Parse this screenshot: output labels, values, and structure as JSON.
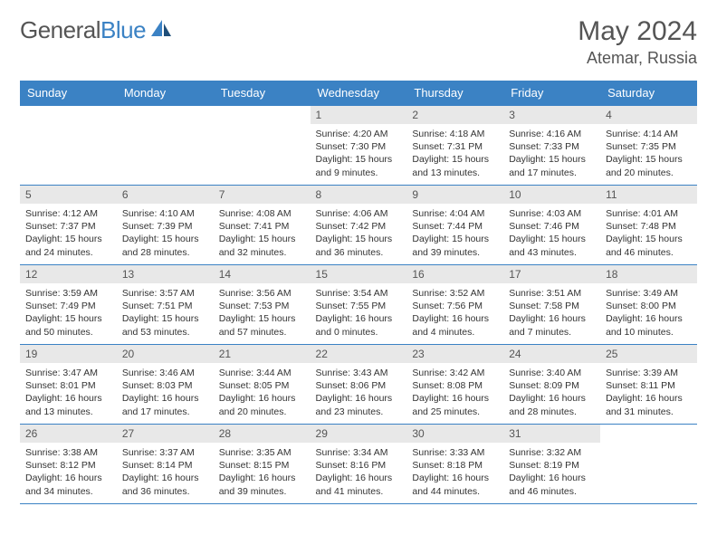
{
  "brand": {
    "part1": "General",
    "part2": "Blue"
  },
  "title": "May 2024",
  "location": "Atemar, Russia",
  "colors": {
    "header_bg": "#3b82c4",
    "header_text": "#ffffff",
    "daynum_bg": "#e8e8e8",
    "border": "#3b82c4",
    "body_text": "#333333",
    "title_text": "#555555"
  },
  "weekdays": [
    "Sunday",
    "Monday",
    "Tuesday",
    "Wednesday",
    "Thursday",
    "Friday",
    "Saturday"
  ],
  "weeks": [
    [
      null,
      null,
      null,
      {
        "n": "1",
        "sr": "4:20 AM",
        "ss": "7:30 PM",
        "dl": "15 hours and 9 minutes."
      },
      {
        "n": "2",
        "sr": "4:18 AM",
        "ss": "7:31 PM",
        "dl": "15 hours and 13 minutes."
      },
      {
        "n": "3",
        "sr": "4:16 AM",
        "ss": "7:33 PM",
        "dl": "15 hours and 17 minutes."
      },
      {
        "n": "4",
        "sr": "4:14 AM",
        "ss": "7:35 PM",
        "dl": "15 hours and 20 minutes."
      }
    ],
    [
      {
        "n": "5",
        "sr": "4:12 AM",
        "ss": "7:37 PM",
        "dl": "15 hours and 24 minutes."
      },
      {
        "n": "6",
        "sr": "4:10 AM",
        "ss": "7:39 PM",
        "dl": "15 hours and 28 minutes."
      },
      {
        "n": "7",
        "sr": "4:08 AM",
        "ss": "7:41 PM",
        "dl": "15 hours and 32 minutes."
      },
      {
        "n": "8",
        "sr": "4:06 AM",
        "ss": "7:42 PM",
        "dl": "15 hours and 36 minutes."
      },
      {
        "n": "9",
        "sr": "4:04 AM",
        "ss": "7:44 PM",
        "dl": "15 hours and 39 minutes."
      },
      {
        "n": "10",
        "sr": "4:03 AM",
        "ss": "7:46 PM",
        "dl": "15 hours and 43 minutes."
      },
      {
        "n": "11",
        "sr": "4:01 AM",
        "ss": "7:48 PM",
        "dl": "15 hours and 46 minutes."
      }
    ],
    [
      {
        "n": "12",
        "sr": "3:59 AM",
        "ss": "7:49 PM",
        "dl": "15 hours and 50 minutes."
      },
      {
        "n": "13",
        "sr": "3:57 AM",
        "ss": "7:51 PM",
        "dl": "15 hours and 53 minutes."
      },
      {
        "n": "14",
        "sr": "3:56 AM",
        "ss": "7:53 PM",
        "dl": "15 hours and 57 minutes."
      },
      {
        "n": "15",
        "sr": "3:54 AM",
        "ss": "7:55 PM",
        "dl": "16 hours and 0 minutes."
      },
      {
        "n": "16",
        "sr": "3:52 AM",
        "ss": "7:56 PM",
        "dl": "16 hours and 4 minutes."
      },
      {
        "n": "17",
        "sr": "3:51 AM",
        "ss": "7:58 PM",
        "dl": "16 hours and 7 minutes."
      },
      {
        "n": "18",
        "sr": "3:49 AM",
        "ss": "8:00 PM",
        "dl": "16 hours and 10 minutes."
      }
    ],
    [
      {
        "n": "19",
        "sr": "3:47 AM",
        "ss": "8:01 PM",
        "dl": "16 hours and 13 minutes."
      },
      {
        "n": "20",
        "sr": "3:46 AM",
        "ss": "8:03 PM",
        "dl": "16 hours and 17 minutes."
      },
      {
        "n": "21",
        "sr": "3:44 AM",
        "ss": "8:05 PM",
        "dl": "16 hours and 20 minutes."
      },
      {
        "n": "22",
        "sr": "3:43 AM",
        "ss": "8:06 PM",
        "dl": "16 hours and 23 minutes."
      },
      {
        "n": "23",
        "sr": "3:42 AM",
        "ss": "8:08 PM",
        "dl": "16 hours and 25 minutes."
      },
      {
        "n": "24",
        "sr": "3:40 AM",
        "ss": "8:09 PM",
        "dl": "16 hours and 28 minutes."
      },
      {
        "n": "25",
        "sr": "3:39 AM",
        "ss": "8:11 PM",
        "dl": "16 hours and 31 minutes."
      }
    ],
    [
      {
        "n": "26",
        "sr": "3:38 AM",
        "ss": "8:12 PM",
        "dl": "16 hours and 34 minutes."
      },
      {
        "n": "27",
        "sr": "3:37 AM",
        "ss": "8:14 PM",
        "dl": "16 hours and 36 minutes."
      },
      {
        "n": "28",
        "sr": "3:35 AM",
        "ss": "8:15 PM",
        "dl": "16 hours and 39 minutes."
      },
      {
        "n": "29",
        "sr": "3:34 AM",
        "ss": "8:16 PM",
        "dl": "16 hours and 41 minutes."
      },
      {
        "n": "30",
        "sr": "3:33 AM",
        "ss": "8:18 PM",
        "dl": "16 hours and 44 minutes."
      },
      {
        "n": "31",
        "sr": "3:32 AM",
        "ss": "8:19 PM",
        "dl": "16 hours and 46 minutes."
      },
      null
    ]
  ],
  "labels": {
    "sunrise": "Sunrise:",
    "sunset": "Sunset:",
    "daylight": "Daylight:"
  }
}
